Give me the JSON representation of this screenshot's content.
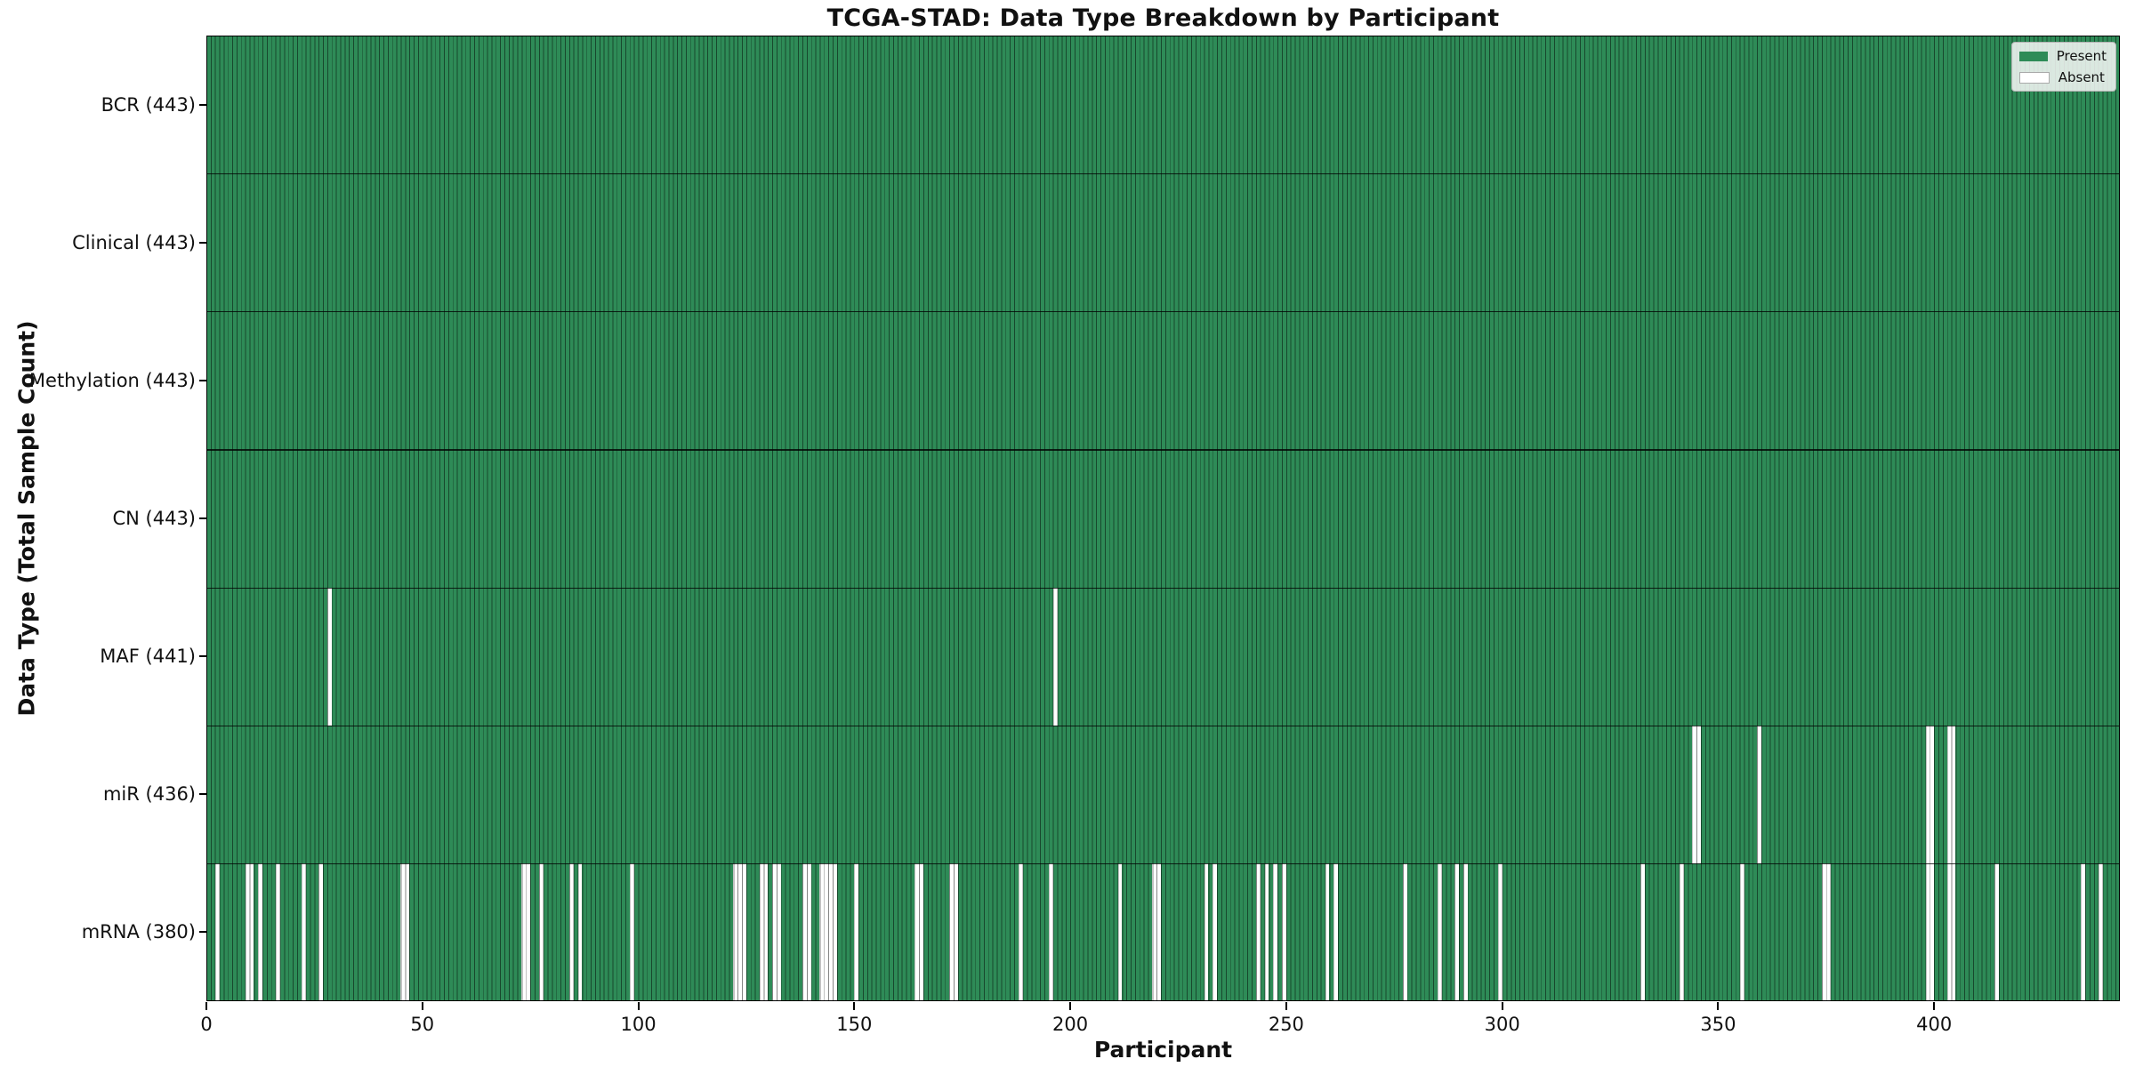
{
  "chart_data": {
    "type": "heatmap",
    "title": "TCGA-STAD: Data Type Breakdown by Participant",
    "xlabel": "Participant",
    "ylabel": "Data Type (Total Sample Count)",
    "n_participants": 443,
    "x_ticks": [
      0,
      50,
      100,
      150,
      200,
      250,
      300,
      350,
      400
    ],
    "x_range": [
      0,
      443
    ],
    "grid": "horizontal row separators only",
    "legend": {
      "position": "upper right",
      "entries": [
        {
          "label": "Present",
          "color": "#2e8b57"
        },
        {
          "label": "Absent",
          "color": "#ffffff"
        }
      ]
    },
    "colors": {
      "present": "#2e8b57",
      "absent": "#ffffff",
      "cell_edge": "rgba(0,0,0,0.48)",
      "row_separator": "#222222",
      "spine": "#000000",
      "background": "#ffffff"
    },
    "rows": [
      {
        "name": "BCR",
        "label": "BCR (443)",
        "present_count": 443,
        "absent": []
      },
      {
        "name": "Clinical",
        "label": "Clinical (443)",
        "present_count": 443,
        "absent": []
      },
      {
        "name": "Methylation",
        "label": "Methylation (443)",
        "present_count": 443,
        "absent": []
      },
      {
        "name": "CN",
        "label": "CN (443)",
        "present_count": 443,
        "absent": []
      },
      {
        "name": "MAF",
        "label": "MAF (441)",
        "present_count": 441,
        "absent": [
          28,
          196
        ]
      },
      {
        "name": "miR",
        "label": "miR (436)",
        "present_count": 436,
        "absent": [
          344,
          345,
          359,
          398,
          399,
          403,
          404
        ]
      },
      {
        "name": "mRNA",
        "label": "mRNA (380)",
        "present_count": 380,
        "absent": [
          2,
          9,
          10,
          12,
          16,
          22,
          26,
          45,
          46,
          73,
          74,
          77,
          84,
          86,
          98,
          122,
          123,
          124,
          128,
          129,
          131,
          132,
          138,
          139,
          142,
          143,
          144,
          145,
          150,
          164,
          165,
          172,
          173,
          188,
          195,
          211,
          219,
          220,
          231,
          233,
          243,
          245,
          247,
          249,
          259,
          261,
          277,
          285,
          289,
          291,
          299,
          332,
          341,
          355,
          374,
          375,
          398,
          399,
          403,
          404,
          414,
          434,
          438
        ]
      }
    ]
  }
}
